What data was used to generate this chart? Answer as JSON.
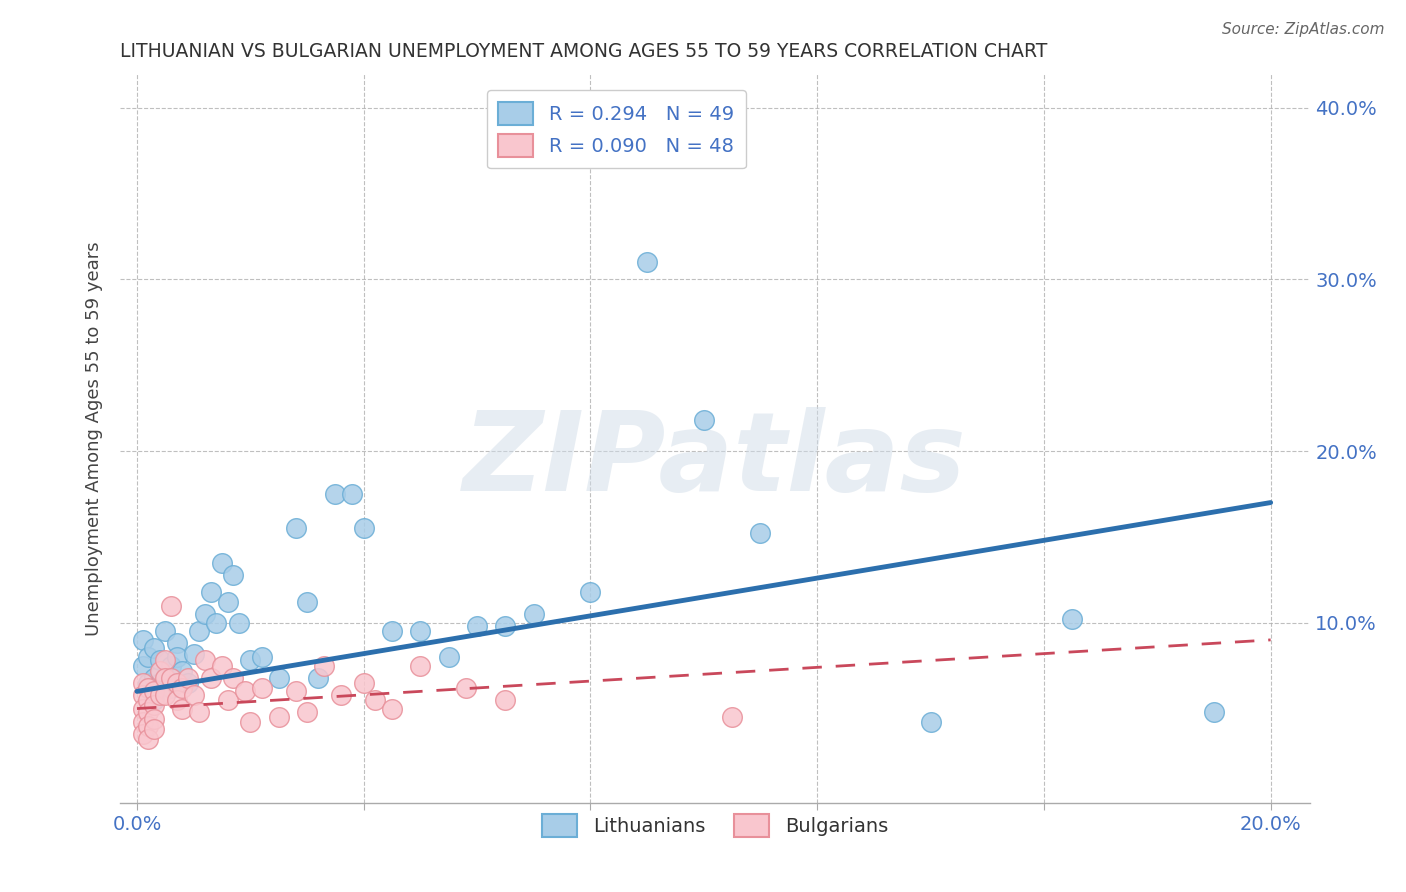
{
  "title": "LITHUANIAN VS BULGARIAN UNEMPLOYMENT AMONG AGES 55 TO 59 YEARS CORRELATION CHART",
  "source": "Source: ZipAtlas.com",
  "ylabel": "Unemployment Among Ages 55 to 59 years",
  "blue_R": 0.294,
  "blue_N": 49,
  "pink_R": 0.09,
  "pink_N": 48,
  "blue_color": "#a8cde8",
  "blue_edge_color": "#6baed6",
  "blue_line_color": "#2c6fad",
  "pink_color": "#f9c6ce",
  "pink_edge_color": "#e8909a",
  "pink_line_color": "#c9485b",
  "blue_line_x": [
    0.0,
    0.2
  ],
  "blue_line_y": [
    0.06,
    0.17
  ],
  "pink_line_x": [
    0.0,
    0.2
  ],
  "pink_line_y": [
    0.05,
    0.09
  ],
  "watermark_text": "ZIPatlas",
  "xlim": [
    -0.003,
    0.207
  ],
  "ylim": [
    -0.005,
    0.42
  ],
  "blue_points_x": [
    0.001,
    0.001,
    0.002,
    0.002,
    0.003,
    0.003,
    0.003,
    0.003,
    0.004,
    0.004,
    0.005,
    0.005,
    0.006,
    0.006,
    0.007,
    0.007,
    0.008,
    0.009,
    0.01,
    0.011,
    0.012,
    0.013,
    0.014,
    0.015,
    0.016,
    0.017,
    0.018,
    0.02,
    0.022,
    0.025,
    0.028,
    0.03,
    0.032,
    0.035,
    0.038,
    0.04,
    0.045,
    0.05,
    0.055,
    0.06,
    0.065,
    0.07,
    0.08,
    0.09,
    0.1,
    0.11,
    0.14,
    0.165,
    0.19
  ],
  "blue_points_y": [
    0.075,
    0.09,
    0.08,
    0.065,
    0.068,
    0.06,
    0.085,
    0.055,
    0.065,
    0.078,
    0.068,
    0.095,
    0.062,
    0.075,
    0.088,
    0.08,
    0.072,
    0.065,
    0.082,
    0.095,
    0.105,
    0.118,
    0.1,
    0.135,
    0.112,
    0.128,
    0.1,
    0.078,
    0.08,
    0.068,
    0.155,
    0.112,
    0.068,
    0.175,
    0.175,
    0.155,
    0.095,
    0.095,
    0.08,
    0.098,
    0.098,
    0.105,
    0.118,
    0.31,
    0.218,
    0.152,
    0.042,
    0.102,
    0.048
  ],
  "pink_points_x": [
    0.001,
    0.001,
    0.001,
    0.001,
    0.001,
    0.002,
    0.002,
    0.002,
    0.002,
    0.002,
    0.003,
    0.003,
    0.003,
    0.003,
    0.004,
    0.004,
    0.005,
    0.005,
    0.005,
    0.006,
    0.006,
    0.007,
    0.007,
    0.008,
    0.008,
    0.009,
    0.01,
    0.011,
    0.012,
    0.013,
    0.015,
    0.016,
    0.017,
    0.019,
    0.02,
    0.022,
    0.025,
    0.028,
    0.03,
    0.033,
    0.036,
    0.04,
    0.042,
    0.045,
    0.05,
    0.058,
    0.065,
    0.105
  ],
  "pink_points_y": [
    0.065,
    0.058,
    0.05,
    0.042,
    0.035,
    0.062,
    0.055,
    0.048,
    0.04,
    0.032,
    0.06,
    0.052,
    0.044,
    0.038,
    0.072,
    0.058,
    0.078,
    0.068,
    0.058,
    0.11,
    0.068,
    0.065,
    0.055,
    0.062,
    0.05,
    0.068,
    0.058,
    0.048,
    0.078,
    0.068,
    0.075,
    0.055,
    0.068,
    0.06,
    0.042,
    0.062,
    0.045,
    0.06,
    0.048,
    0.075,
    0.058,
    0.065,
    0.055,
    0.05,
    0.075,
    0.062,
    0.055,
    0.045
  ]
}
